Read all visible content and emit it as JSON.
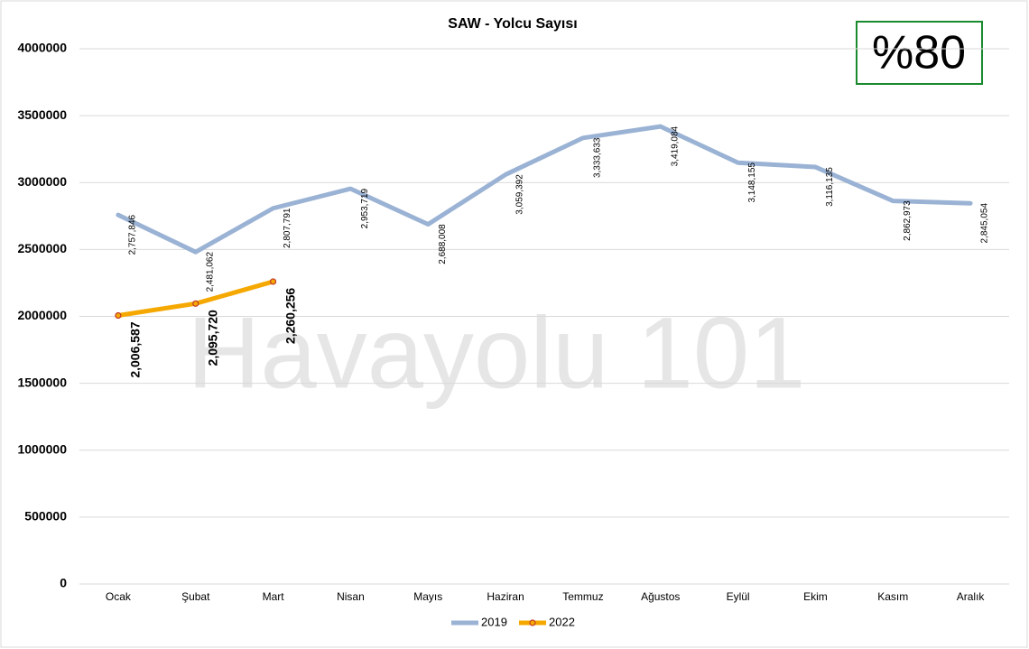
{
  "chart_data": {
    "type": "line",
    "title": "SAW - Yolcu Sayısı",
    "categories": [
      "Ocak",
      "Şubat",
      "Mart",
      "Nisan",
      "Mayıs",
      "Haziran",
      "Temmuz",
      "Ağustos",
      "Eylül",
      "Ekim",
      "Kasım",
      "Aralık"
    ],
    "series": [
      {
        "name": "2019",
        "color": "#9ab2d4",
        "values": [
          2757846,
          2481062,
          2807791,
          2953719,
          2688008,
          3059392,
          3333633,
          3419084,
          3148155,
          3116135,
          2862973,
          2845054
        ],
        "value_labels": [
          "2,757,846",
          "2,481,062",
          "2,807,791",
          "2,953,719",
          "2,688,008",
          "3,059,392",
          "3,333,633",
          "3,419,084",
          "3,148,155",
          "3,116,135",
          "2,862,973",
          "2,845,054"
        ]
      },
      {
        "name": "2022",
        "color": "#f5a800",
        "values": [
          2006587,
          2095720,
          2260256,
          null,
          null,
          null,
          null,
          null,
          null,
          null,
          null,
          null
        ],
        "value_labels": [
          "2,006,587",
          "2,095,720",
          "2,260,256",
          null,
          null,
          null,
          null,
          null,
          null,
          null,
          null,
          null
        ]
      }
    ],
    "ylim": [
      0,
      4000000
    ],
    "yticks": [
      0,
      500000,
      1000000,
      1500000,
      2000000,
      2500000,
      3000000,
      3500000,
      4000000
    ],
    "grid": true,
    "legend": "bottom",
    "annotations": [
      "%80",
      "Havayolu 101"
    ]
  }
}
